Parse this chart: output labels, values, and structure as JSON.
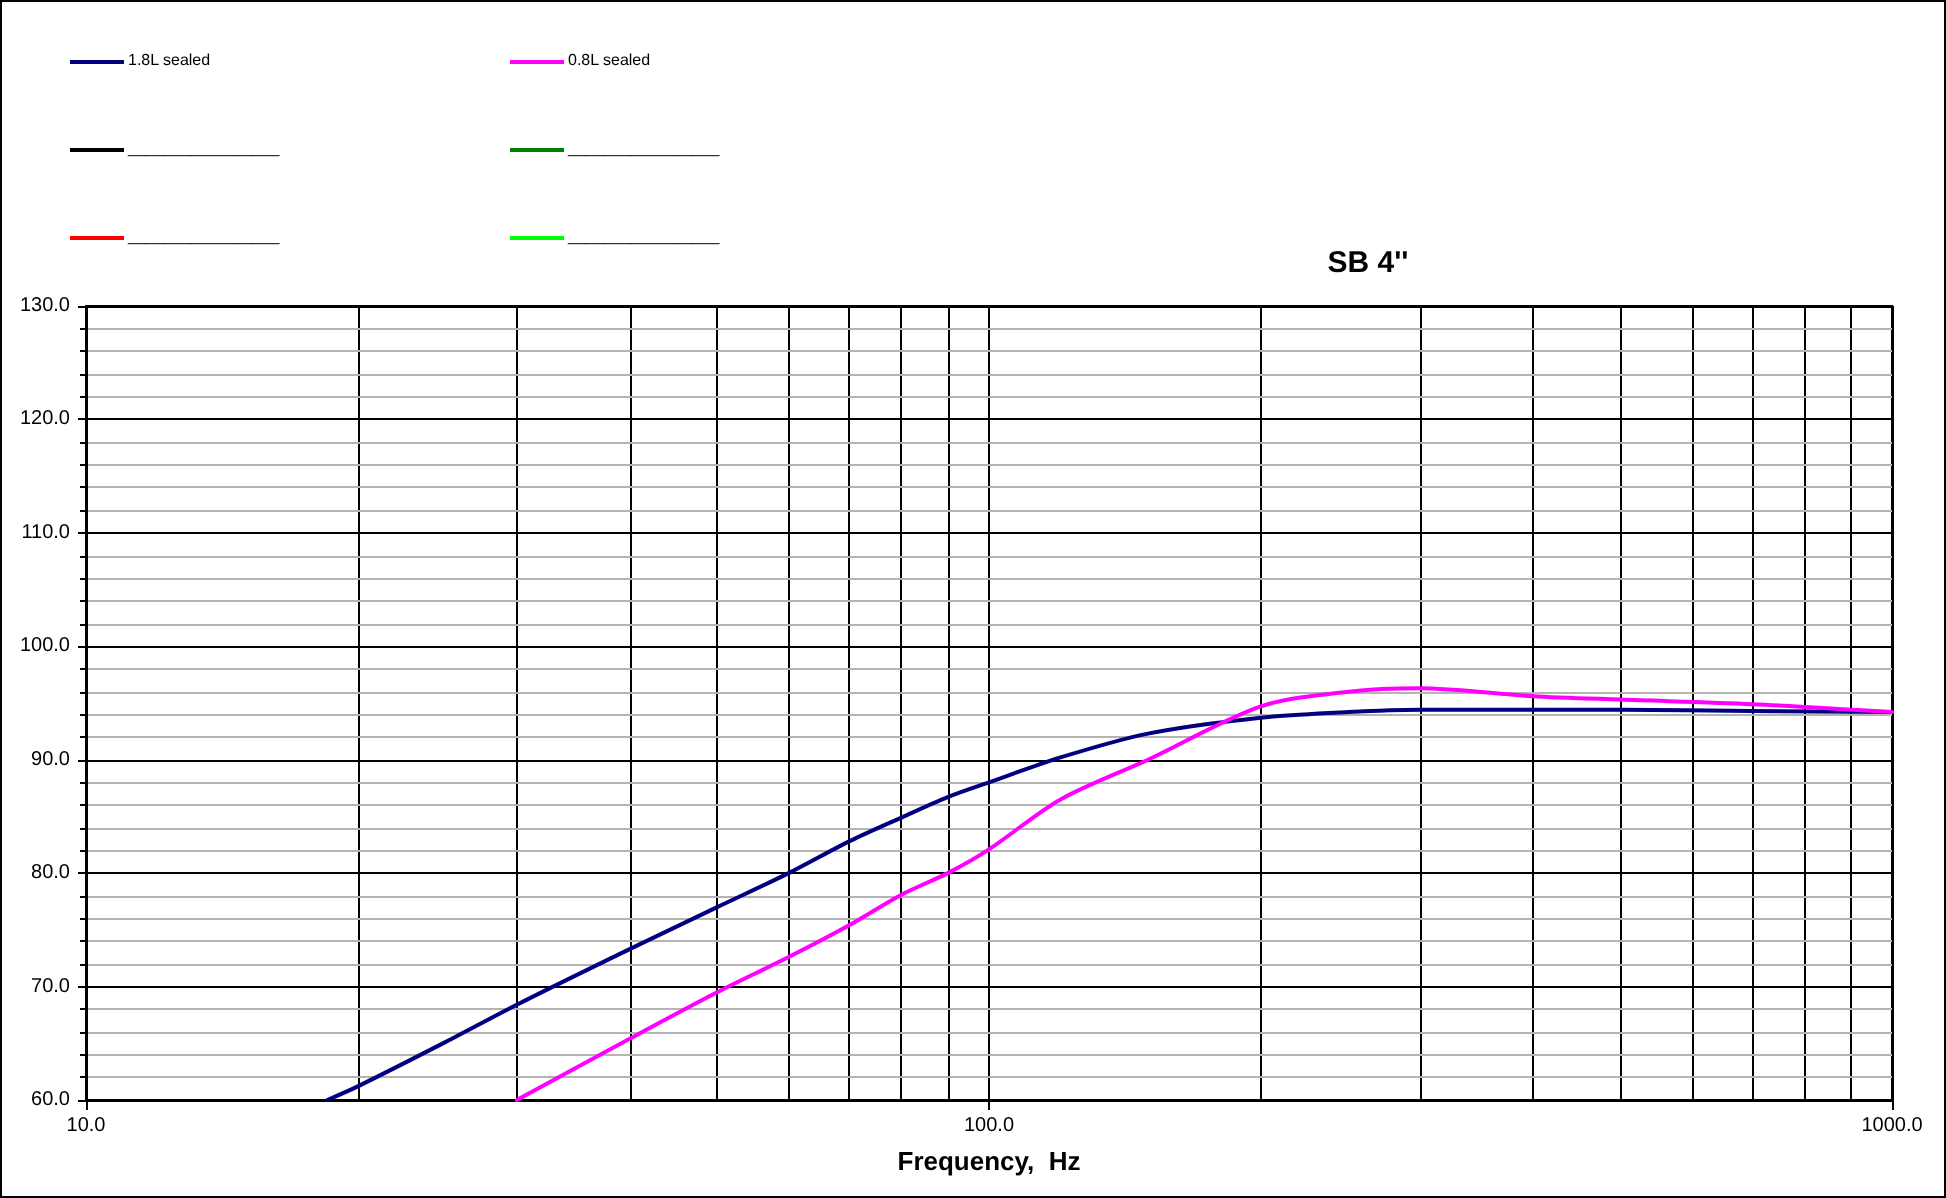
{
  "chart_data": {
    "type": "line",
    "title": "SB 4''",
    "xlabel": "Frequency,  Hz",
    "x": [
      18.5,
      20,
      25,
      30,
      40,
      50,
      60,
      70,
      80,
      90,
      100,
      120,
      150,
      200,
      250,
      300,
      400,
      500,
      700,
      1000
    ],
    "series": [
      {
        "name": "1.8L sealed",
        "color": "#000080",
        "values": [
          60.0,
          61.2,
          65.1,
          68.4,
          73.3,
          77.0,
          80.0,
          82.8,
          84.9,
          86.7,
          88.0,
          90.2,
          92.3,
          93.7,
          94.2,
          94.4,
          94.4,
          94.4,
          94.3,
          94.2
        ]
      },
      {
        "name": "0.8L sealed",
        "color": "#ff00ff",
        "values": [
          null,
          null,
          null,
          60.0,
          65.4,
          69.5,
          72.6,
          75.4,
          78.1,
          80.0,
          82.1,
          86.5,
          90.0,
          94.7,
          96.0,
          96.3,
          95.6,
          95.3,
          94.9,
          94.2
        ]
      },
      {
        "name": "_________________",
        "color": "#000000",
        "values": [
          null,
          null,
          null,
          null,
          null,
          null,
          null,
          null,
          null,
          null,
          null,
          null,
          null,
          null,
          null,
          null,
          null,
          null,
          null,
          null
        ]
      },
      {
        "name": "_________________",
        "color": "#008000",
        "values": [
          null,
          null,
          null,
          null,
          null,
          null,
          null,
          null,
          null,
          null,
          null,
          null,
          null,
          null,
          null,
          null,
          null,
          null,
          null,
          null
        ]
      },
      {
        "name": "_________________",
        "color": "#ff0000",
        "values": [
          null,
          null,
          null,
          null,
          null,
          null,
          null,
          null,
          null,
          null,
          null,
          null,
          null,
          null,
          null,
          null,
          null,
          null,
          null,
          null
        ]
      },
      {
        "name": "_________________",
        "color": "#00ff00",
        "values": [
          null,
          null,
          null,
          null,
          null,
          null,
          null,
          null,
          null,
          null,
          null,
          null,
          null,
          null,
          null,
          null,
          null,
          null,
          null,
          null
        ]
      }
    ],
    "log": "x",
    "xlim": [
      10,
      1000
    ],
    "xticks": [
      {
        "value": 10,
        "label": "10.0"
      },
      {
        "value": 20,
        "label": null
      },
      {
        "value": 30,
        "label": null
      },
      {
        "value": 40,
        "label": null
      },
      {
        "value": 50,
        "label": null
      },
      {
        "value": 60,
        "label": null
      },
      {
        "value": 70,
        "label": null
      },
      {
        "value": 80,
        "label": null
      },
      {
        "value": 90,
        "label": null
      },
      {
        "value": 100,
        "label": "100.0"
      },
      {
        "value": 200,
        "label": null
      },
      {
        "value": 300,
        "label": null
      },
      {
        "value": 400,
        "label": null
      },
      {
        "value": 500,
        "label": null
      },
      {
        "value": 600,
        "label": null
      },
      {
        "value": 700,
        "label": null
      },
      {
        "value": 800,
        "label": null
      },
      {
        "value": 900,
        "label": null
      },
      {
        "value": 1000,
        "label": "1000.0"
      }
    ],
    "ylim": [
      60,
      130
    ],
    "yticks": [
      {
        "value": 60,
        "label": "60.0"
      },
      {
        "value": 62,
        "label": null
      },
      {
        "value": 64,
        "label": null
      },
      {
        "value": 66,
        "label": null
      },
      {
        "value": 68,
        "label": null
      },
      {
        "value": 70,
        "label": "70.0"
      },
      {
        "value": 72,
        "label": null
      },
      {
        "value": 74,
        "label": null
      },
      {
        "value": 76,
        "label": null
      },
      {
        "value": 78,
        "label": null
      },
      {
        "value": 80,
        "label": "80.0"
      },
      {
        "value": 82,
        "label": null
      },
      {
        "value": 84,
        "label": null
      },
      {
        "value": 86,
        "label": null
      },
      {
        "value": 88,
        "label": null
      },
      {
        "value": 90,
        "label": "90.0"
      },
      {
        "value": 92,
        "label": null
      },
      {
        "value": 94,
        "label": null
      },
      {
        "value": 96,
        "label": null
      },
      {
        "value": 98,
        "label": null
      },
      {
        "value": 100,
        "label": "100.0"
      },
      {
        "value": 102,
        "label": null
      },
      {
        "value": 104,
        "label": null
      },
      {
        "value": 106,
        "label": null
      },
      {
        "value": 108,
        "label": null
      },
      {
        "value": 110,
        "label": "110.0"
      },
      {
        "value": 112,
        "label": null
      },
      {
        "value": 114,
        "label": null
      },
      {
        "value": 116,
        "label": null
      },
      {
        "value": 118,
        "label": null
      },
      {
        "value": 120,
        "label": "120.0"
      },
      {
        "value": 122,
        "label": null
      },
      {
        "value": 124,
        "label": null
      },
      {
        "value": 126,
        "label": null
      },
      {
        "value": 128,
        "label": null
      },
      {
        "value": 130,
        "label": "130.0"
      }
    ],
    "grid": true,
    "legend": "top left",
    "marker": "none",
    "line_style": "solid"
  }
}
